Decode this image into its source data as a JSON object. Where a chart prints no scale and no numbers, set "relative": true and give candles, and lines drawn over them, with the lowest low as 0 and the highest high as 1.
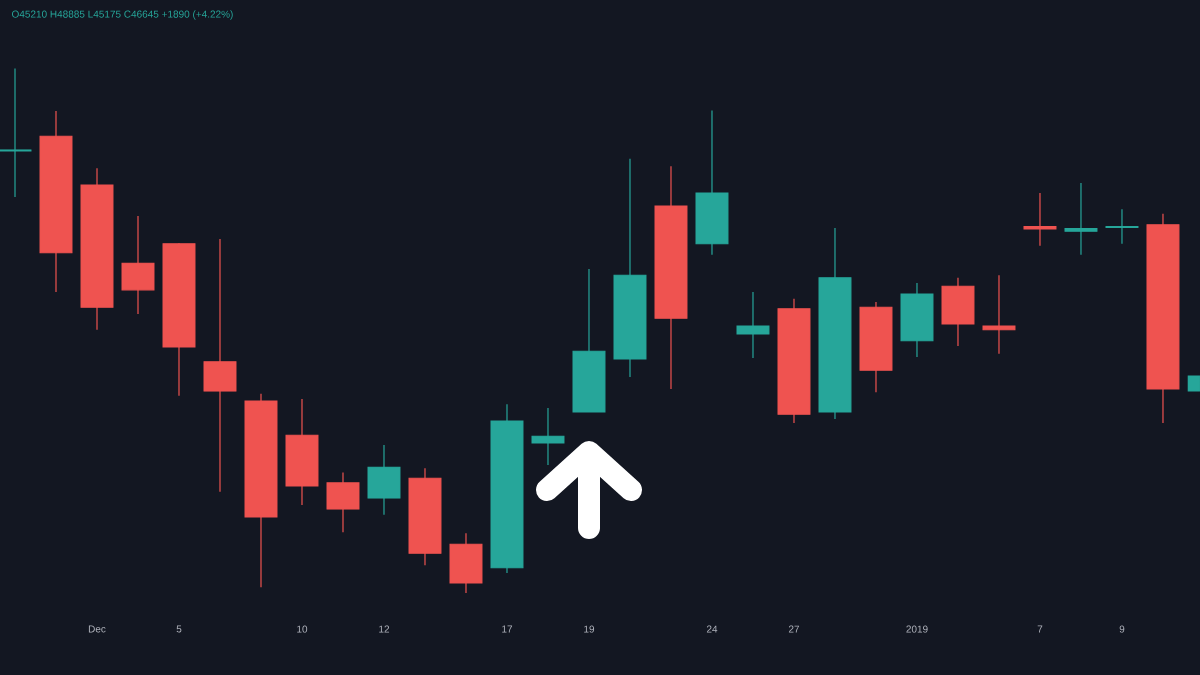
{
  "chart_data": {
    "type": "candlestick",
    "relative": true,
    "annotations": [
      "O45210 H48885 L45175 C46645 +1890 (+4.22%)"
    ],
    "categories": [
      null,
      null,
      "Dec",
      null,
      "5",
      null,
      null,
      "10",
      null,
      "12",
      null,
      null,
      "17",
      null,
      "19",
      null,
      null,
      "24",
      null,
      "27",
      null,
      null,
      "2019",
      null,
      null,
      "7",
      null,
      "9",
      null,
      null
    ],
    "ohlc": [
      [
        0.843,
        1,
        0.755,
        0.845
      ],
      [
        0.871,
        0.919,
        0.574,
        0.649
      ],
      [
        0.778,
        0.81,
        0.502,
        0.545
      ],
      [
        0.629,
        0.719,
        0.532,
        0.578
      ],
      [
        0.666,
        0.667,
        0.376,
        0.469
      ],
      [
        0.441,
        0.675,
        0.193,
        0.385
      ],
      [
        0.366,
        0.38,
        0.011,
        0.145
      ],
      [
        0.301,
        0.37,
        0.168,
        0.204
      ],
      [
        0.21,
        0.23,
        0.116,
        0.16
      ],
      [
        0.181,
        0.282,
        0.149,
        0.24
      ],
      [
        0.219,
        0.238,
        0.053,
        0.076
      ],
      [
        0.093,
        0.114,
        0,
        0.019
      ],
      [
        0.048,
        0.36,
        0.038,
        0.328
      ],
      [
        0.286,
        0.353,
        0.244,
        0.299
      ],
      [
        0.345,
        0.618,
        0.345,
        0.461
      ],
      [
        0.446,
        0.828,
        0.412,
        0.606
      ],
      [
        0.738,
        0.814,
        0.389,
        0.524
      ],
      [
        0.666,
        0.92,
        0.645,
        0.763
      ],
      [
        0.494,
        0.574,
        0.448,
        0.509
      ],
      [
        0.542,
        0.561,
        0.324,
        0.341
      ],
      [
        0.345,
        0.696,
        0.332,
        0.601
      ],
      [
        0.545,
        0.555,
        0.383,
        0.425
      ],
      [
        0.481,
        0.591,
        0.45,
        0.57
      ],
      [
        0.585,
        0.601,
        0.471,
        0.513
      ],
      [
        0.509,
        0.606,
        0.456,
        0.502
      ],
      [
        0.699,
        0.763,
        0.662,
        0.694
      ],
      [
        0.69,
        0.782,
        0.645,
        0.695
      ],
      [
        0.697,
        0.732,
        0.666,
        0.699
      ],
      [
        0.702,
        0.723,
        0.324,
        0.389
      ],
      [
        0.385,
        0.414,
        0.385,
        0.414
      ]
    ],
    "colors": [
      "#26a69a",
      "#ef5350",
      "#ef5350",
      "#ef5350",
      "#ef5350",
      "#ef5350",
      "#ef5350",
      "#ef5350",
      "#ef5350",
      "#26a69a",
      "#ef5350",
      "#ef5350",
      "#26a69a",
      "#26a69a",
      "#26a69a",
      "#26a69a",
      "#ef5350",
      "#26a69a",
      "#26a69a",
      "#ef5350",
      "#26a69a",
      "#ef5350",
      "#26a69a",
      "#ef5350",
      "#ef5350",
      "#ef5350",
      "#26a69a",
      "#26a69a",
      "#ef5350",
      "#26a69a"
    ]
  }
}
